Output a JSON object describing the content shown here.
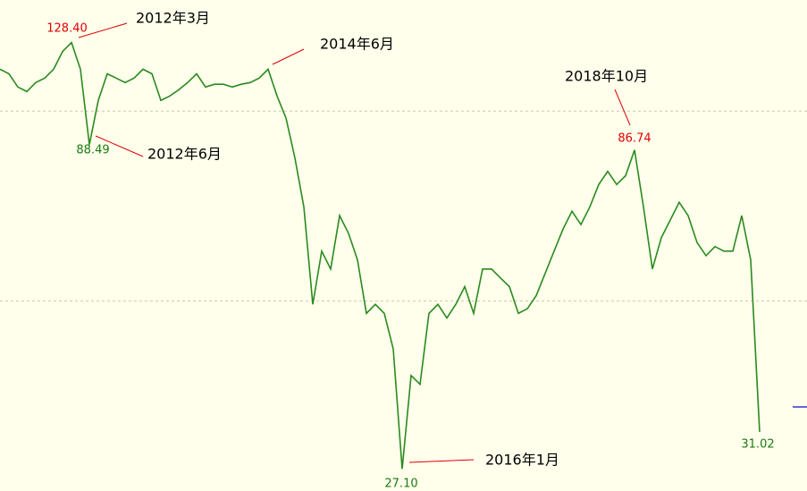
{
  "chart_data": {
    "type": "line",
    "log_scale": true,
    "ylim": [
      25,
      150
    ],
    "grid_values": [
      50,
      100
    ],
    "color": "#2a8a1e",
    "values": [
      116.5,
      114.6,
      109.2,
      107.4,
      111.0,
      112.8,
      116.5,
      124.3,
      128.4,
      116.5,
      88.49,
      104.0,
      114.6,
      112.8,
      111.0,
      112.8,
      116.5,
      114.6,
      104.0,
      105.7,
      108.1,
      111.0,
      114.6,
      109.2,
      110.3,
      110.3,
      109.2,
      110.3,
      111.0,
      112.8,
      116.5,
      105.7,
      97.5,
      84.3,
      70.5,
      49.4,
      60.0,
      56.2,
      68.3,
      64.0,
      58.1,
      47.8,
      49.4,
      47.8,
      42.0,
      27.1,
      38.1,
      36.9,
      47.8,
      49.4,
      47.0,
      49.4,
      52.7,
      47.8,
      56.2,
      56.2,
      54.4,
      52.7,
      47.8,
      48.6,
      51.0,
      55.3,
      60.0,
      65.0,
      69.4,
      66.1,
      70.5,
      76.5,
      80.3,
      76.5,
      79.0,
      86.74,
      70.5,
      56.2,
      63.0,
      67.2,
      71.7,
      68.3,
      61.9,
      59.0,
      61.0,
      60.0,
      60.0,
      68.3,
      58.1,
      31.02
    ],
    "annotations": [
      {
        "price": "128.40",
        "date": "2012年3月",
        "color": "#e00000"
      },
      {
        "price": "88.49",
        "date": "2012年6月",
        "color": "#1a7a10"
      },
      {
        "date": "2014年6月"
      },
      {
        "price": "86.74",
        "date": "2018年10月",
        "color": "#e00000"
      },
      {
        "price": "27.10",
        "date": "2016年1月",
        "color": "#1a7a10"
      },
      {
        "price": "31.02",
        "color": "#1a7a10"
      }
    ]
  }
}
